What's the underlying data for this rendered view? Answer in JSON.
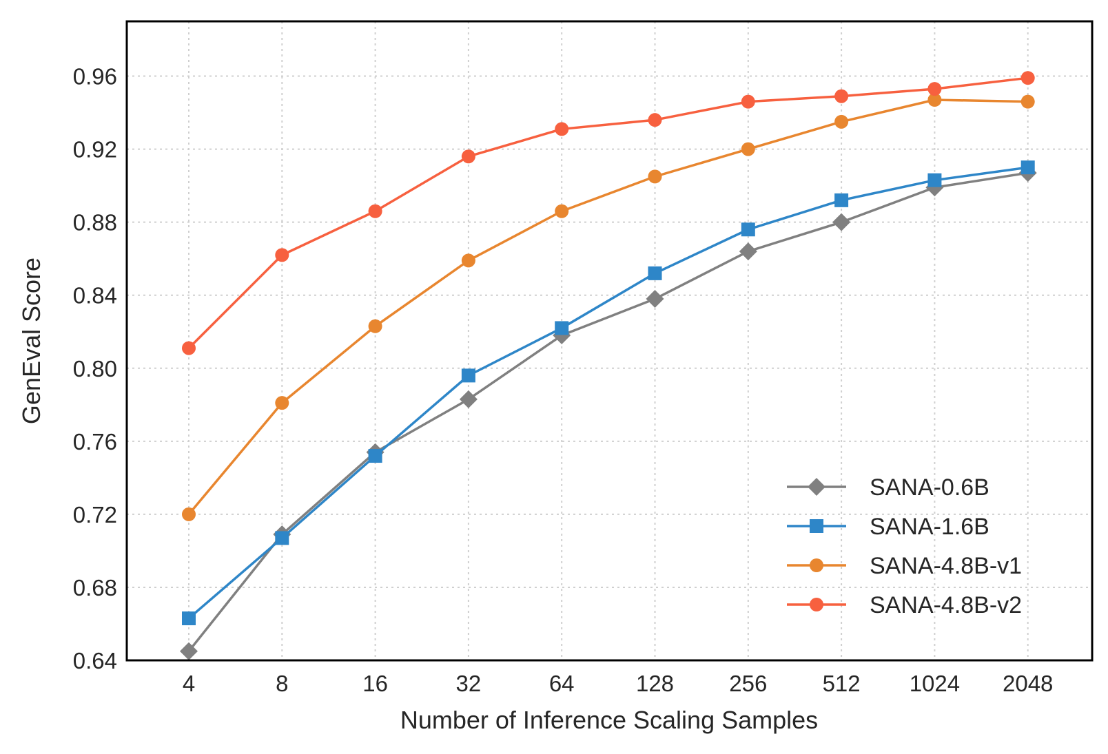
{
  "chart_data": {
    "type": "line",
    "title": "",
    "xlabel": "Number of Inference Scaling Samples",
    "ylabel": "GenEval Score",
    "categories": [
      "4",
      "8",
      "16",
      "32",
      "64",
      "128",
      "256",
      "512",
      "1024",
      "2048"
    ],
    "ylim": [
      0.64,
      0.99
    ],
    "yticks": [
      "0.64",
      "0.68",
      "0.72",
      "0.76",
      "0.80",
      "0.84",
      "0.88",
      "0.92",
      "0.96"
    ],
    "grid": true,
    "legend_position": "lower-right",
    "series": [
      {
        "name": "SANA-0.6B",
        "color": "#808080",
        "marker": "diamond",
        "values": [
          0.645,
          0.709,
          0.754,
          0.783,
          0.818,
          0.838,
          0.864,
          0.88,
          0.899,
          0.907
        ]
      },
      {
        "name": "SANA-1.6B",
        "color": "#2e86c8",
        "marker": "square",
        "values": [
          0.663,
          0.707,
          0.752,
          0.796,
          0.822,
          0.852,
          0.876,
          0.892,
          0.903,
          0.91
        ]
      },
      {
        "name": "SANA-4.8B-v1",
        "color": "#e8862f",
        "marker": "circle",
        "values": [
          0.72,
          0.781,
          0.823,
          0.859,
          0.886,
          0.905,
          0.92,
          0.935,
          0.947,
          0.946
        ]
      },
      {
        "name": "SANA-4.8B-v2",
        "color": "#f7603f",
        "marker": "circle",
        "values": [
          0.811,
          0.862,
          0.886,
          0.916,
          0.931,
          0.936,
          0.946,
          0.949,
          0.953,
          0.959
        ]
      }
    ]
  }
}
